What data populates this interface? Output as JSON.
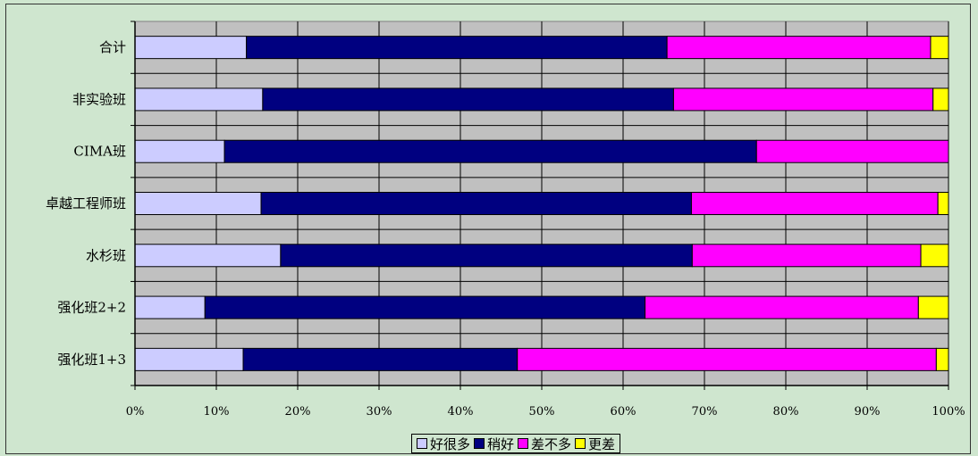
{
  "chart_data": {
    "type": "bar",
    "orientation": "horizontal",
    "stacked": true,
    "percent": true,
    "categories": [
      "合计",
      "非实验班",
      "CIMA班",
      "卓越工程师班",
      "水杉班",
      "强化班2+2",
      "强化班1+3"
    ],
    "series": [
      {
        "name": "好很多",
        "color": "#ccccff",
        "values": [
          13.7,
          15.7,
          11.0,
          15.5,
          17.9,
          8.6,
          13.3
        ]
      },
      {
        "name": "稍好",
        "color": "#000080",
        "values": [
          51.7,
          50.5,
          65.4,
          52.9,
          50.6,
          54.1,
          33.7
        ]
      },
      {
        "name": "差不多",
        "color": "#ff00ff",
        "values": [
          32.4,
          31.9,
          23.6,
          30.3,
          28.1,
          33.6,
          51.5
        ]
      },
      {
        "name": "更差",
        "color": "#ffff00",
        "values": [
          2.2,
          1.9,
          0.0,
          1.3,
          3.4,
          3.7,
          1.5
        ]
      }
    ],
    "xticks": [
      "0%",
      "10%",
      "20%",
      "30%",
      "40%",
      "50%",
      "60%",
      "70%",
      "80%",
      "90%",
      "100%"
    ],
    "xlim": [
      0,
      100
    ],
    "grid": true,
    "plot_background": "#c0c0c0",
    "legend_position": "bottom"
  }
}
